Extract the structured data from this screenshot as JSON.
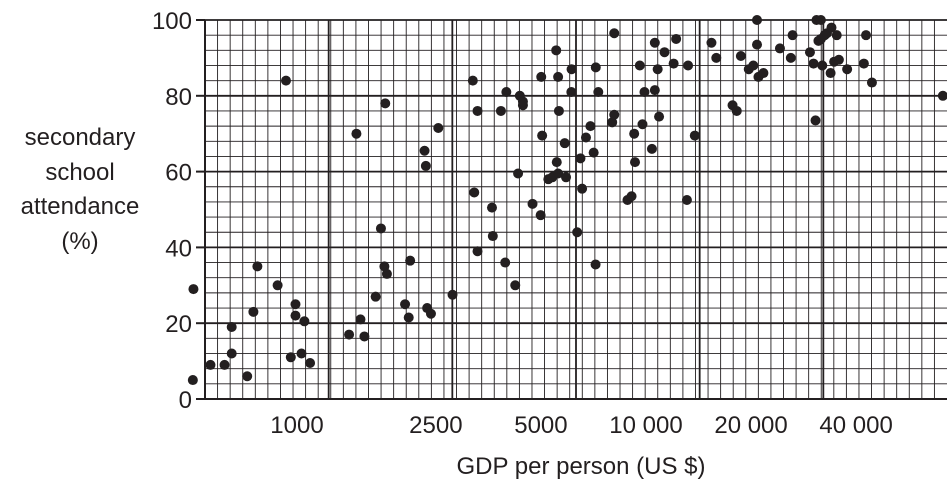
{
  "chart_data": {
    "type": "scatter",
    "title": "",
    "xlabel": "GDP per person (US $)",
    "ylabel_lines": [
      "secondary",
      "school",
      "attendance",
      "(%)"
    ],
    "x_scale": "log",
    "xlim": [
      500,
      90000
    ],
    "ylim": [
      0,
      100
    ],
    "grid": true,
    "x_ticks": [
      {
        "value": 1000,
        "label": "1000"
      },
      {
        "value": 2500,
        "label": "2500"
      },
      {
        "value": 5000,
        "label": "5000"
      },
      {
        "value": 10000,
        "label": "10 000"
      },
      {
        "value": 20000,
        "label": "20 000"
      },
      {
        "value": 40000,
        "label": "40 000"
      }
    ],
    "y_ticks": [
      {
        "value": 0,
        "label": "0"
      },
      {
        "value": 20,
        "label": "20"
      },
      {
        "value": 40,
        "label": "40"
      },
      {
        "value": 60,
        "label": "60"
      },
      {
        "value": 80,
        "label": "80"
      },
      {
        "value": 100,
        "label": "100"
      }
    ],
    "marker_color": "#231f20",
    "points": [
      [
        503,
        5
      ],
      [
        505,
        29
      ],
      [
        565,
        9
      ],
      [
        620,
        9
      ],
      [
        650,
        12
      ],
      [
        650,
        19
      ],
      [
        720,
        6
      ],
      [
        750,
        23
      ],
      [
        770,
        35
      ],
      [
        880,
        30
      ],
      [
        930,
        84
      ],
      [
        960,
        11
      ],
      [
        990,
        25
      ],
      [
        990,
        22
      ],
      [
        1030,
        12
      ],
      [
        1050,
        20.5
      ],
      [
        1090,
        9.5
      ],
      [
        1410,
        17
      ],
      [
        1480,
        70
      ],
      [
        1520,
        21
      ],
      [
        1560,
        16.5
      ],
      [
        1680,
        27
      ],
      [
        1740,
        45
      ],
      [
        1780,
        35
      ],
      [
        1790,
        78
      ],
      [
        1810,
        33
      ],
      [
        2040,
        25
      ],
      [
        2090,
        21.5
      ],
      [
        2110,
        36.5
      ],
      [
        2320,
        65.5
      ],
      [
        2340,
        61.5
      ],
      [
        2360,
        24
      ],
      [
        2420,
        22.5
      ],
      [
        2540,
        71.5
      ],
      [
        2790,
        27.5
      ],
      [
        3190,
        84
      ],
      [
        3220,
        54.5
      ],
      [
        3290,
        39
      ],
      [
        3290,
        76
      ],
      [
        3620,
        50.5
      ],
      [
        3640,
        43
      ],
      [
        3840,
        76
      ],
      [
        3950,
        36
      ],
      [
        3980,
        81
      ],
      [
        4220,
        30
      ],
      [
        4300,
        59.5
      ],
      [
        4350,
        80
      ],
      [
        4440,
        77.5
      ],
      [
        4440,
        78.5
      ],
      [
        4730,
        51.5
      ],
      [
        4990,
        48.5
      ],
      [
        5010,
        85
      ],
      [
        5040,
        69.5
      ],
      [
        5250,
        58
      ],
      [
        5390,
        58.5
      ],
      [
        5530,
        92
      ],
      [
        5550,
        62.5
      ],
      [
        5600,
        85
      ],
      [
        5600,
        59.5
      ],
      [
        5630,
        76
      ],
      [
        5850,
        67.5
      ],
      [
        5900,
        58.5
      ],
      [
        6110,
        81
      ],
      [
        6120,
        87
      ],
      [
        6350,
        44
      ],
      [
        6490,
        63.5
      ],
      [
        6560,
        55.5
      ],
      [
        6730,
        69
      ],
      [
        6930,
        72
      ],
      [
        7080,
        65
      ],
      [
        7170,
        35.5
      ],
      [
        7180,
        87.5
      ],
      [
        7300,
        81
      ],
      [
        8000,
        73
      ],
      [
        8110,
        96.5
      ],
      [
        8110,
        75
      ],
      [
        8850,
        52.5
      ],
      [
        9090,
        53.5
      ],
      [
        9250,
        70
      ],
      [
        9300,
        62.5
      ],
      [
        9600,
        88
      ],
      [
        9770,
        72.5
      ],
      [
        9900,
        81
      ],
      [
        10400,
        66
      ],
      [
        10600,
        94
      ],
      [
        10600,
        81.5
      ],
      [
        10800,
        87
      ],
      [
        10900,
        74.5
      ],
      [
        11300,
        91.5
      ],
      [
        12000,
        88.5
      ],
      [
        12200,
        95
      ],
      [
        13100,
        52.5
      ],
      [
        13200,
        88
      ],
      [
        13800,
        69.5
      ],
      [
        15400,
        94
      ],
      [
        15900,
        90
      ],
      [
        17700,
        77.5
      ],
      [
        18200,
        76
      ],
      [
        18700,
        90.5
      ],
      [
        19700,
        87
      ],
      [
        20300,
        88
      ],
      [
        20800,
        93.5
      ],
      [
        20800,
        100
      ],
      [
        21000,
        85
      ],
      [
        21700,
        86
      ],
      [
        24200,
        92.5
      ],
      [
        26000,
        90
      ],
      [
        26300,
        96
      ],
      [
        29500,
        91.5
      ],
      [
        30200,
        88.5
      ],
      [
        30600,
        73.5
      ],
      [
        30800,
        100
      ],
      [
        31200,
        94.5
      ],
      [
        31700,
        100
      ],
      [
        31700,
        95
      ],
      [
        32000,
        88
      ],
      [
        32500,
        96
      ],
      [
        33000,
        96.5
      ],
      [
        33800,
        86
      ],
      [
        34000,
        98
      ],
      [
        34600,
        89
      ],
      [
        35200,
        96
      ],
      [
        35700,
        89.5
      ],
      [
        37700,
        87
      ],
      [
        42100,
        88.5
      ],
      [
        42700,
        96
      ],
      [
        44400,
        83.5
      ],
      [
        70900,
        80
      ]
    ]
  }
}
